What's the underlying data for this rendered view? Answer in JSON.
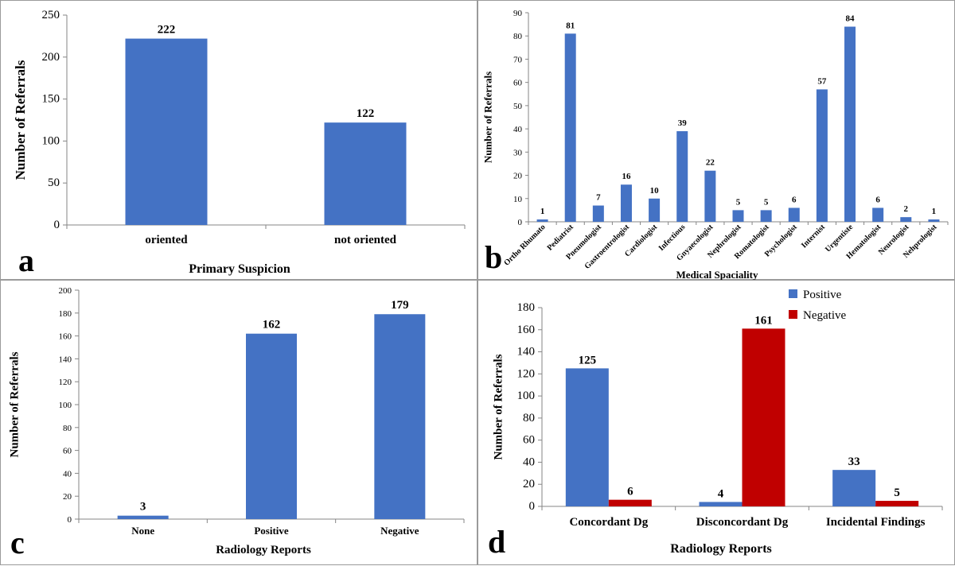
{
  "chart_data": [
    {
      "id": "a",
      "panel_letter": "a",
      "type": "bar",
      "categories": [
        "oriented",
        "not oriented"
      ],
      "values": [
        222,
        122
      ],
      "data_labels": [
        "222",
        "122"
      ],
      "xlabel": "Primary Suspicion",
      "ylabel": "Number of Referrals",
      "ylim": [
        0,
        250
      ],
      "yticks": [
        0,
        50,
        100,
        150,
        200,
        250
      ],
      "grid": false,
      "color": "#4472C4"
    },
    {
      "id": "b",
      "panel_letter": "b",
      "type": "bar",
      "categories": [
        "Ortho Rhumato",
        "Pediatrist",
        "Pneumologist",
        "Gastroentrologist",
        "Cardiologist",
        "Infectious",
        "Gnyaecologist",
        "Nephrologist",
        "Romatologist",
        "Psychologist",
        "Internist",
        "Urgentiste",
        "Hematologist",
        "Neurologist",
        "Nehprologist"
      ],
      "values": [
        1,
        81,
        7,
        16,
        10,
        39,
        22,
        5,
        5,
        6,
        57,
        84,
        6,
        2,
        1
      ],
      "data_labels": [
        "1",
        "81",
        "7",
        "16",
        "10",
        "39",
        "22",
        "5",
        "5",
        "6",
        "57",
        "84",
        "6",
        "2",
        "1"
      ],
      "xlabel": "Medical Spaciality",
      "ylabel": "Number of Referrals",
      "ylim": [
        0,
        90
      ],
      "yticks": [
        0,
        10,
        20,
        30,
        40,
        50,
        60,
        70,
        80,
        90
      ],
      "grid": false,
      "color": "#4472C4"
    },
    {
      "id": "c",
      "panel_letter": "c",
      "type": "bar",
      "categories": [
        "None",
        "Positive",
        "Negative"
      ],
      "values": [
        3,
        162,
        179
      ],
      "data_labels": [
        "3",
        "162",
        "179"
      ],
      "xlabel": "Radiology Reports",
      "ylabel": "Number of Referrals",
      "ylim": [
        0,
        200
      ],
      "yticks": [
        0,
        20,
        40,
        60,
        80,
        100,
        120,
        140,
        160,
        180,
        200
      ],
      "grid": false,
      "color": "#4472C4"
    },
    {
      "id": "d",
      "panel_letter": "d",
      "type": "bar",
      "categories": [
        "Concordant Dg",
        "Disconcordant Dg",
        "Incidental Findings"
      ],
      "series": [
        {
          "name": "Positive",
          "values": [
            125,
            4,
            33
          ],
          "data_labels": [
            "125",
            "4",
            "33"
          ],
          "color": "#4472C4"
        },
        {
          "name": "Negative",
          "values": [
            6,
            161,
            5
          ],
          "data_labels": [
            "6",
            "161",
            "5"
          ],
          "color": "#C00000"
        }
      ],
      "xlabel": "Radiology Reports",
      "ylabel": "Number of Referrals",
      "ylim": [
        0,
        180
      ],
      "yticks": [
        0,
        20,
        40,
        60,
        80,
        100,
        120,
        140,
        160,
        180
      ],
      "legend_position": "top-right",
      "grid": false
    }
  ]
}
